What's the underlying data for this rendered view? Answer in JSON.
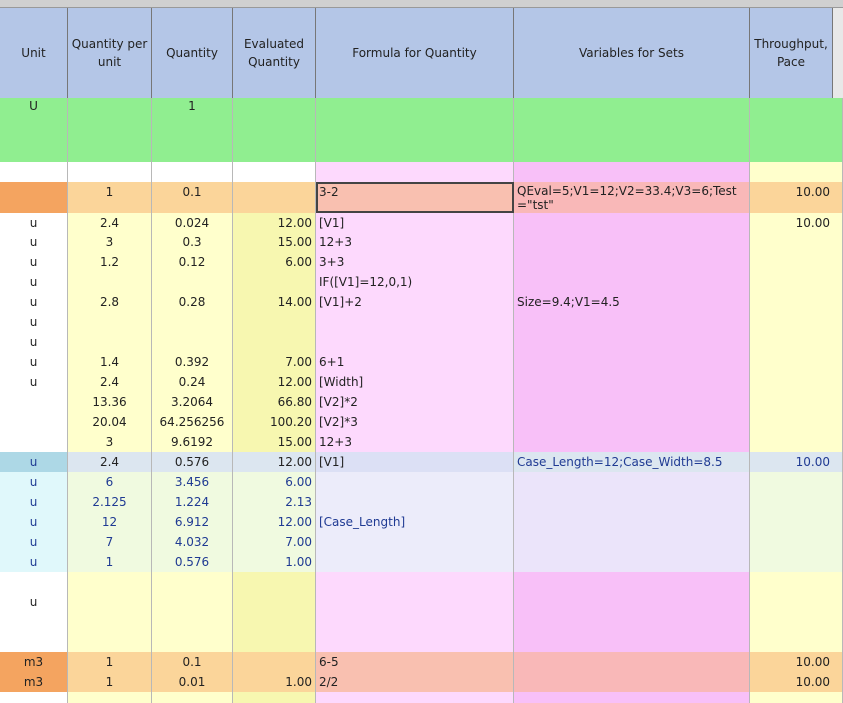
{
  "header": [
    "Unit",
    "Quantity per unit",
    "Quantity",
    "Evaluated Quantity",
    "Formula for Quantity",
    "Variables for Sets",
    "Throughput, Pace"
  ],
  "rows": [
    [
      "U",
      null,
      "1",
      null,
      null,
      null,
      null
    ],
    [
      null,
      null,
      null,
      null,
      null,
      null,
      null
    ],
    [
      null,
      "1",
      "0.1",
      null,
      "3-2",
      "QEval=5;V1=12;V2=33.4;V3=6;Test=\"tst\"",
      "10.00"
    ],
    [
      "u",
      "2.4",
      "0.024",
      "12.00",
      "[V1]",
      null,
      "10.00"
    ],
    [
      "u",
      "3",
      "0.3",
      "15.00",
      "12+3",
      null,
      null
    ],
    [
      "u",
      "1.2",
      "0.12",
      "6.00",
      "3+3",
      null,
      null
    ],
    [
      "u",
      null,
      null,
      null,
      "IF([V1]=12,0,1)",
      null,
      null
    ],
    [
      "u",
      "2.8",
      "0.28",
      "14.00",
      "[V1]+2",
      "Size=9.4;V1=4.5",
      null
    ],
    [
      "u",
      null,
      null,
      null,
      null,
      null,
      null
    ],
    [
      "u",
      null,
      null,
      null,
      null,
      null,
      null
    ],
    [
      "u",
      "1.4",
      "0.392",
      "7.00",
      "6+1",
      null,
      null
    ],
    [
      "u",
      "2.4",
      "0.24",
      "12.00",
      "[Width]",
      null,
      null
    ],
    [
      null,
      "13.36",
      "3.2064",
      "66.80",
      "[V2]*2",
      null,
      null
    ],
    [
      null,
      "20.04",
      "64.256256",
      "100.20",
      "[V2]*3",
      null,
      null
    ],
    [
      null,
      "3",
      "9.6192",
      "15.00",
      "12+3",
      null,
      null
    ],
    [
      "u",
      "2.4",
      "0.576",
      "12.00",
      "[V1]",
      "Case_Length=12;Case_Width=8.5",
      "10.00"
    ],
    [
      "u",
      "6",
      "3.456",
      "6.00",
      null,
      null,
      null
    ],
    [
      "u",
      "2.125",
      "1.224",
      "2.13",
      null,
      null,
      null
    ],
    [
      "u",
      "12",
      "6.912",
      "12.00",
      "[Case_Length]",
      null,
      null
    ],
    [
      "u",
      "7",
      "4.032",
      "7.00",
      null,
      null,
      null
    ],
    [
      "u",
      "1",
      "0.576",
      "1.00",
      null,
      null,
      null
    ],
    [
      "u",
      null,
      null,
      null,
      null,
      null,
      null
    ],
    [
      "m3",
      "1",
      "0.1",
      null,
      "6-5",
      null,
      "10.00"
    ],
    [
      "m3",
      "1",
      "0.01",
      "1.00",
      "2/2",
      null,
      "10.00"
    ],
    [
      null,
      null,
      null,
      null,
      null,
      null,
      null
    ]
  ]
}
